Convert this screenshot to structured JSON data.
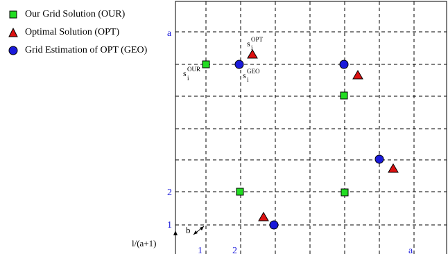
{
  "legend": {
    "our": "Our Grid Solution (OUR)",
    "opt": "Optimal Solution (OPT)",
    "geo": "Grid Estimation of OPT (GEO)"
  },
  "axis_labels": {
    "y_a": "a",
    "y_2": "2",
    "y_1": "1",
    "x_1": "1",
    "x_2": "2",
    "x_a": "a"
  },
  "annotations": {
    "s_our_base": "s",
    "s_our_sub": "i",
    "s_our_sup": "OUR",
    "s_opt_base": "s",
    "s_opt_sub": "i",
    "s_opt_sup": "OPT",
    "s_geo_base": "s",
    "s_geo_sub": "i",
    "s_geo_sup": "GEO",
    "b_label": "b",
    "cell_height_label": "l/(a+1)"
  },
  "colors": {
    "our": "#22dd22",
    "opt": "#dd1111",
    "geo": "#1a1adb",
    "grid": "#000000",
    "axis_text": "#1a1adb"
  }
}
